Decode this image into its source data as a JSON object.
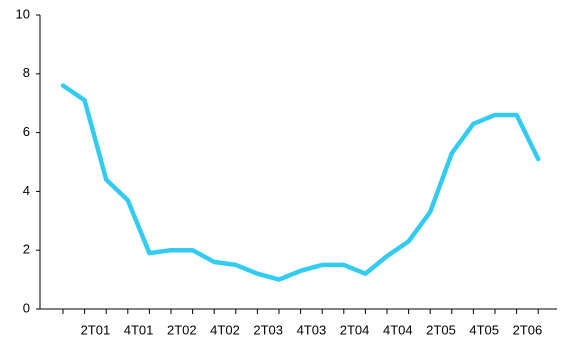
{
  "chart_data": {
    "type": "line",
    "categories": [
      null,
      "2T01",
      null,
      "4T01",
      null,
      "2T02",
      null,
      "4T02",
      null,
      "2T03",
      null,
      "4T03",
      null,
      "2T04",
      null,
      "4T04",
      null,
      "2T05",
      null,
      "4T05",
      null,
      "2T06",
      null
    ],
    "series": [
      {
        "color": "#33ccf0",
        "values": [
          7.6,
          7.1,
          4.4,
          3.7,
          1.9,
          2.0,
          2.0,
          1.6,
          1.5,
          1.2,
          1.0,
          1.3,
          1.5,
          1.5,
          1.2,
          1.8,
          2.3,
          3.3,
          5.3,
          6.3,
          6.6,
          6.6,
          5.1
        ]
      }
    ],
    "ylim": [
      0,
      10
    ],
    "yticks": [
      0,
      2,
      4,
      6,
      8,
      10
    ],
    "grid": false
  }
}
